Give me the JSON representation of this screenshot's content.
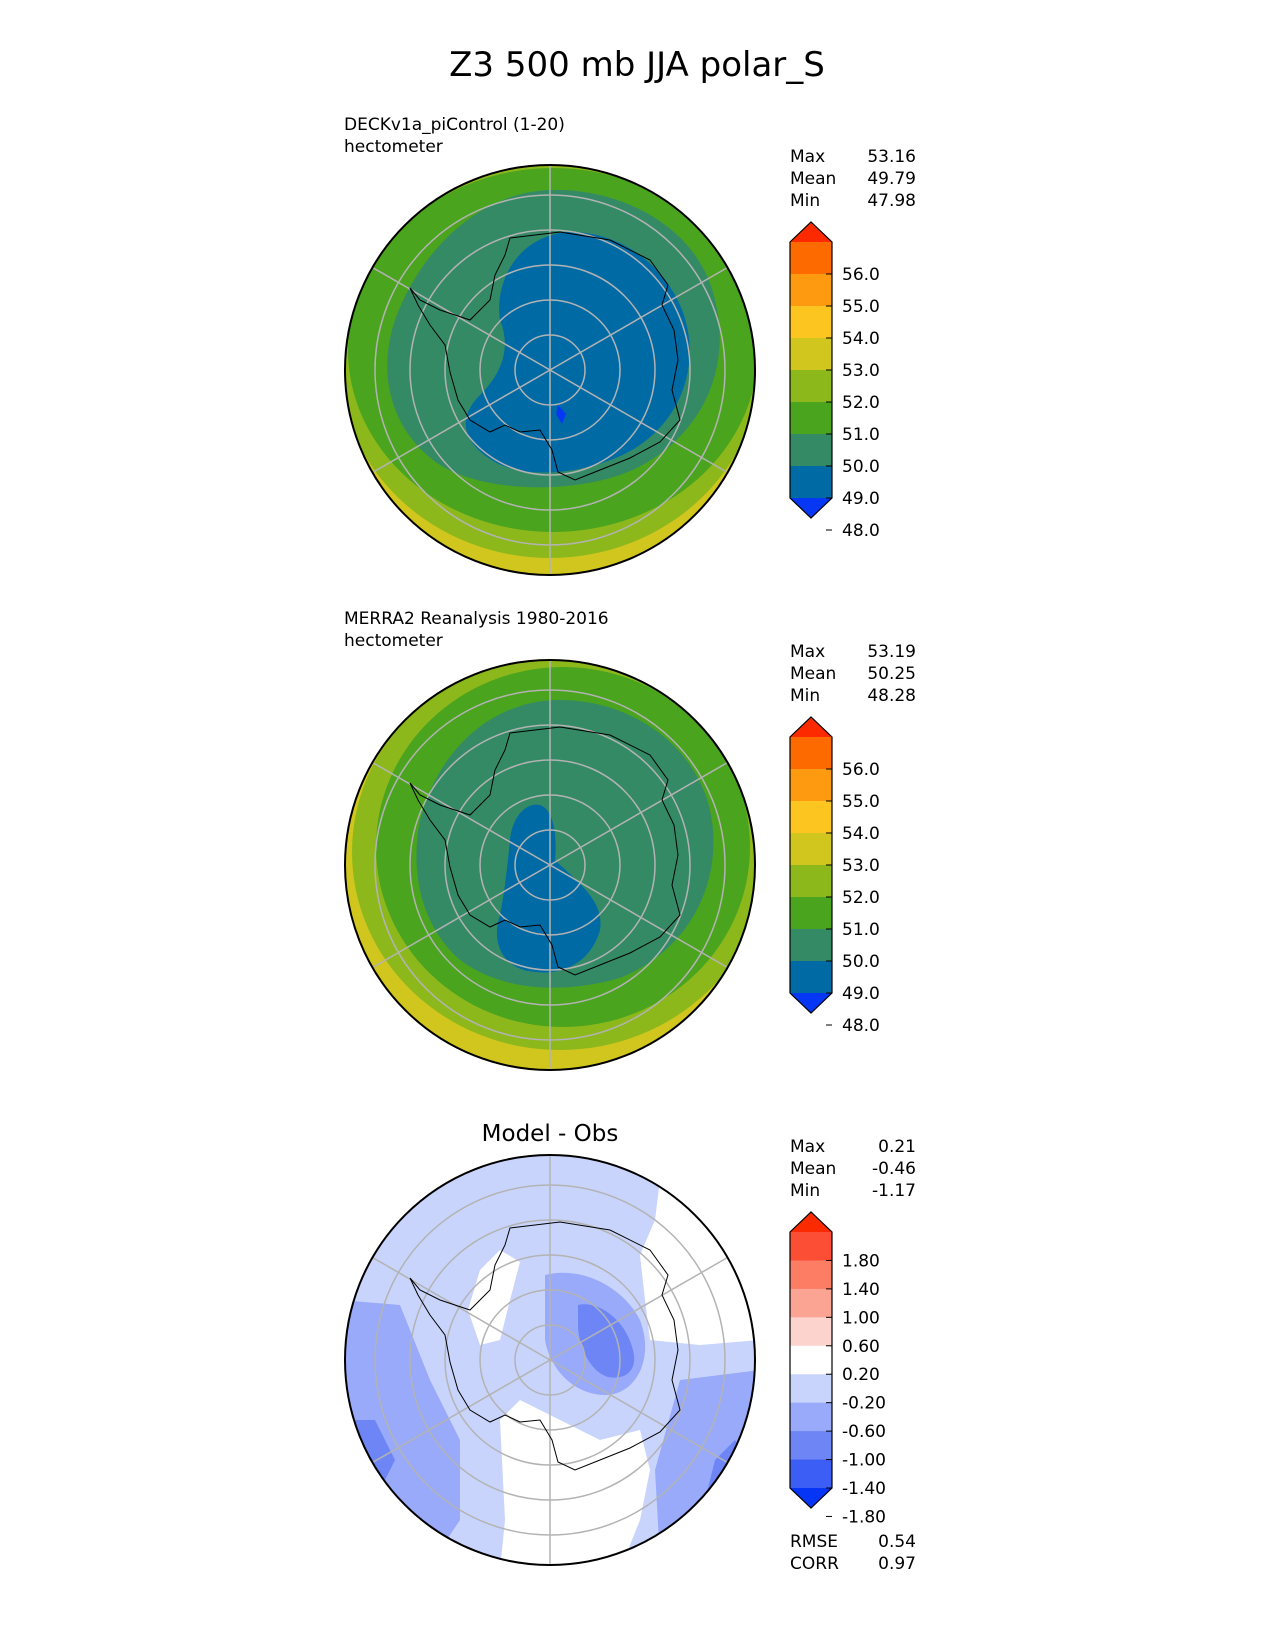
{
  "title": "Z3 500 mb JJA polar_S",
  "colors": {
    "abs_levels": [
      "#0537f5",
      "#006aa5",
      "#358a66",
      "#4aa41e",
      "#8db81c",
      "#d0c61e",
      "#fcc520",
      "#fd9a10",
      "#fd6a00",
      "#fd2a00"
    ],
    "diff_levels": [
      "#0735f5",
      "#3c5ef5",
      "#6e86f5",
      "#99aafa",
      "#c9d4fc",
      "#ffffff",
      "#fdd4cd",
      "#fca494",
      "#fc7c64",
      "#fc4d35",
      "#fc2a00"
    ],
    "grid": "#b3b3b3",
    "coast": "#000000"
  },
  "panels": [
    {
      "id": "model",
      "line1": "DECKv1a_piControl (1-20)",
      "line2": "hectometer",
      "stats": [
        {
          "label": "Max",
          "value": "53.16"
        },
        {
          "label": "Mean",
          "value": "49.79"
        },
        {
          "label": "Min",
          "value": "47.98"
        }
      ],
      "colorbar_ticks": [
        "56.0",
        "55.0",
        "54.0",
        "53.0",
        "52.0",
        "51.0",
        "50.0",
        "49.0",
        "48.0"
      ]
    },
    {
      "id": "obs",
      "line1": "MERRA2 Reanalysis 1980-2016",
      "line2": "hectometer",
      "stats": [
        {
          "label": "Max",
          "value": "53.19"
        },
        {
          "label": "Mean",
          "value": "50.25"
        },
        {
          "label": "Min",
          "value": "48.28"
        }
      ],
      "colorbar_ticks": [
        "56.0",
        "55.0",
        "54.0",
        "53.0",
        "52.0",
        "51.0",
        "50.0",
        "49.0",
        "48.0"
      ]
    },
    {
      "id": "diff",
      "heading": "Model - Obs",
      "stats": [
        {
          "label": "Max",
          "value": "0.21"
        },
        {
          "label": "Mean",
          "value": "-0.46"
        },
        {
          "label": "Min",
          "value": "-1.17"
        }
      ],
      "colorbar_ticks": [
        "1.80",
        "1.40",
        "1.00",
        "0.60",
        "0.20",
        "-0.20",
        "-0.60",
        "-1.00",
        "-1.40",
        "-1.80"
      ],
      "metrics": [
        {
          "label": "RMSE",
          "value": "0.54"
        },
        {
          "label": "CORR",
          "value": "0.97"
        }
      ]
    }
  ],
  "chart_data": [
    {
      "type": "heatmap",
      "projection": "south polar stereographic",
      "field": "Z3 500 mb JJA",
      "units": "hectometer",
      "levels": [
        48,
        49,
        50,
        51,
        52,
        53,
        54,
        55,
        56
      ],
      "extend": "both",
      "stats": {
        "max": 53.16,
        "mean": 49.79,
        "min": 47.98
      }
    },
    {
      "type": "heatmap",
      "projection": "south polar stereographic",
      "field": "Z3 500 mb JJA",
      "units": "hectometer",
      "levels": [
        48,
        49,
        50,
        51,
        52,
        53,
        54,
        55,
        56
      ],
      "extend": "both",
      "stats": {
        "max": 53.19,
        "mean": 50.25,
        "min": 48.28
      }
    },
    {
      "type": "heatmap",
      "projection": "south polar stereographic",
      "field": "Model - Obs",
      "levels": [
        -1.8,
        -1.4,
        -1.0,
        -0.6,
        -0.2,
        0.2,
        0.6,
        1.0,
        1.4,
        1.8
      ],
      "extend": "both",
      "stats": {
        "max": 0.21,
        "mean": -0.46,
        "min": -1.17,
        "rmse": 0.54,
        "corr": 0.97
      }
    }
  ]
}
